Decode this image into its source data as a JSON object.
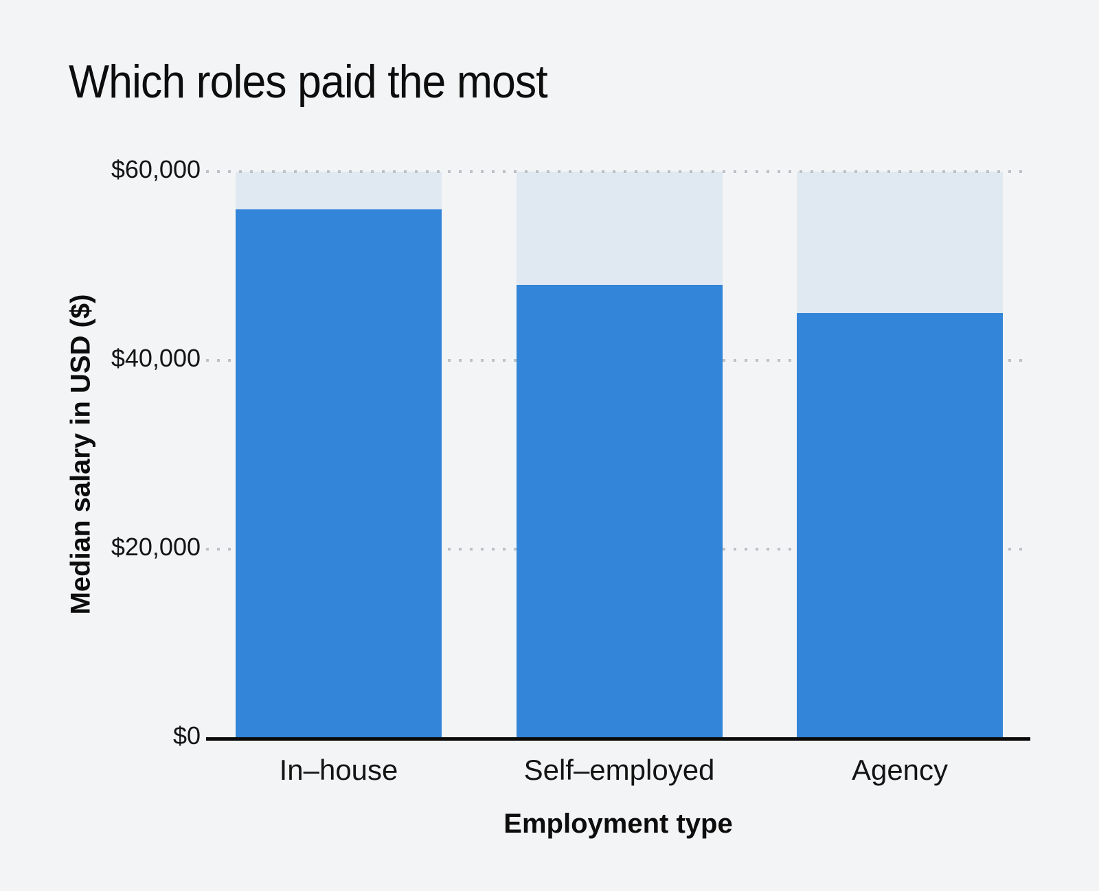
{
  "page": {
    "background_color": "#f3f4f6"
  },
  "chart_data": {
    "type": "bar",
    "title": "Which roles paid the most",
    "xlabel": "Employment type",
    "ylabel": "Median salary in USD ($)",
    "categories": [
      "In–house",
      "Self–employed",
      "Agency"
    ],
    "values": [
      56000,
      48000,
      45000
    ],
    "ylim": [
      0,
      60000
    ],
    "yticks": [
      {
        "value": 0,
        "label": "$0"
      },
      {
        "value": 20000,
        "label": "$20,000"
      },
      {
        "value": 40000,
        "label": "$40,000"
      },
      {
        "value": 60000,
        "label": "$60,000"
      }
    ],
    "grid": "horizontal-dotted",
    "legend": "none",
    "colors": {
      "bar_fill": "#3285d8",
      "bar_track": "#e0e8f1",
      "gridline": "#bcc1c8",
      "axis_line": "#0a0a0a",
      "text": "#0d0d0d",
      "background": "#f3f4f6"
    }
  }
}
